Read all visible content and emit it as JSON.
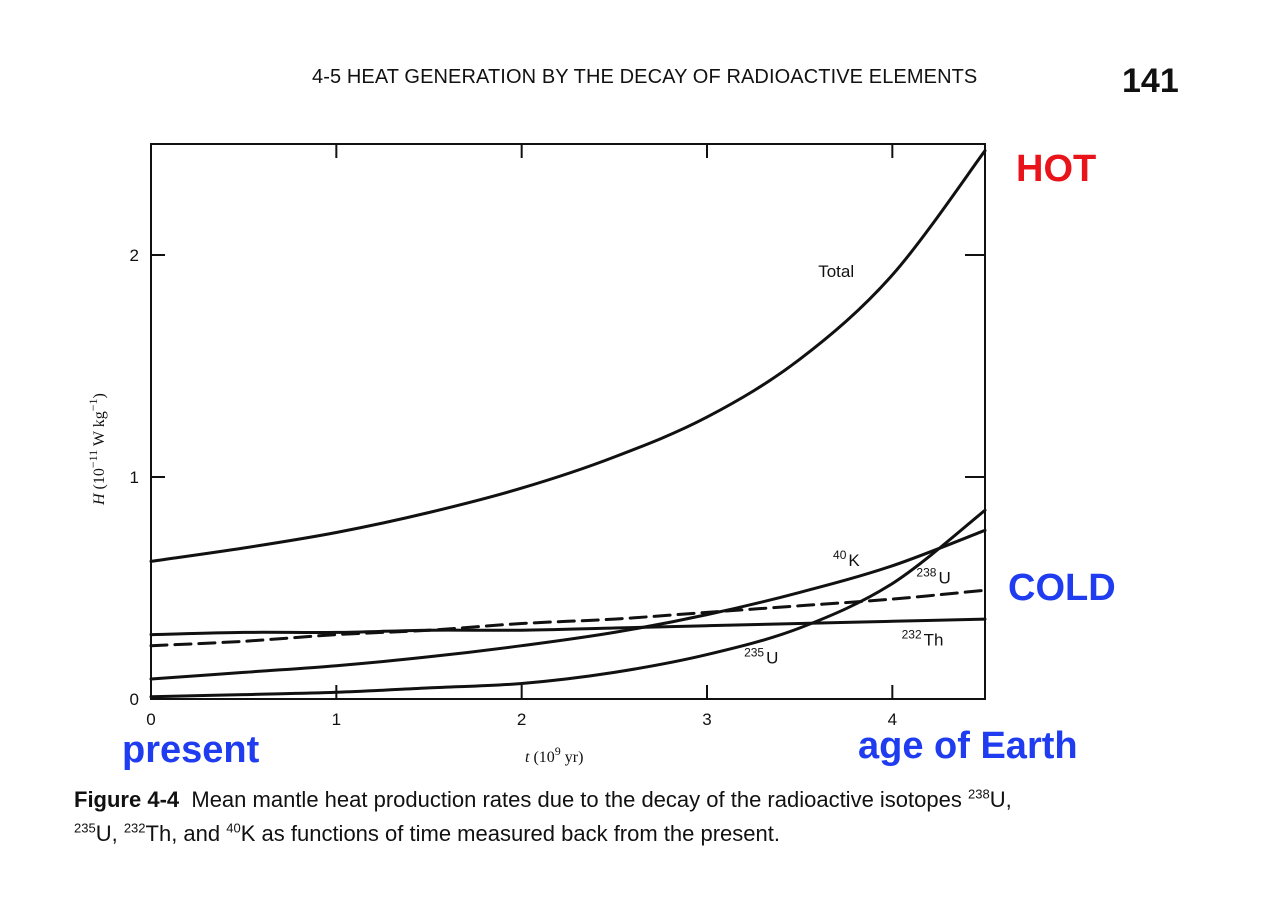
{
  "header": {
    "running_head": "4-5   HEAT GENERATION BY THE DECAY OF RADIOACTIVE ELEMENTS",
    "page_number": "141"
  },
  "annotations": {
    "hot": "HOT",
    "cold": "COLD",
    "present": "present",
    "age_of_earth": "age of Earth",
    "hot_color": "#e8141a",
    "cold_color": "#1f3cf0"
  },
  "caption": {
    "label": "Figure 4-4",
    "text_1": "Mean mantle heat production rates due to the decay of the radioactive isotopes ",
    "iso_1_mass": "238",
    "iso_1_sym": "U, ",
    "iso_2_mass": "235",
    "iso_2_sym": "U, ",
    "iso_3_mass": "232",
    "iso_3_sym": "Th, and ",
    "iso_4_mass": "40",
    "iso_4_sym": "K",
    "text_2": " as functions of time measured back from the present."
  },
  "chart_data": {
    "type": "line",
    "xlim": [
      0,
      4.5
    ],
    "ylim": [
      0,
      2.5
    ],
    "x_ticks": [
      0,
      1,
      2,
      3,
      4
    ],
    "y_ticks": [
      0,
      1,
      2
    ],
    "x_tick_labels": [
      "0",
      "1",
      "2",
      "3",
      "4"
    ],
    "y_tick_labels": [
      "0",
      "1",
      "2"
    ],
    "xlabel": {
      "var": "t",
      "unit_open": " (10",
      "unit_exp": "9",
      "unit_close": " yr)"
    },
    "ylabel": {
      "var": "H",
      "unit_open": " (10",
      "unit_exp": "−11",
      "unit_mid": " W kg",
      "unit_exp2": "−1",
      "unit_close": ")"
    },
    "grid": false,
    "series": [
      {
        "name": "Total",
        "style": "solid",
        "x": [
          0,
          0.5,
          1,
          1.5,
          2,
          2.5,
          3,
          3.5,
          4,
          4.5
        ],
        "y": [
          0.62,
          0.68,
          0.75,
          0.84,
          0.95,
          1.09,
          1.27,
          1.53,
          1.91,
          2.47
        ]
      },
      {
        "name": "40K",
        "mass": "40",
        "sym": "K",
        "style": "solid",
        "x": [
          0,
          0.5,
          1,
          1.5,
          2,
          2.5,
          3,
          3.5,
          4,
          4.5
        ],
        "y": [
          0.09,
          0.12,
          0.15,
          0.19,
          0.24,
          0.3,
          0.38,
          0.48,
          0.6,
          0.76
        ]
      },
      {
        "name": "238U",
        "mass": "238",
        "sym": "U",
        "style": "dashed",
        "x": [
          0,
          0.5,
          1,
          1.5,
          2,
          2.5,
          3,
          3.5,
          4,
          4.5
        ],
        "y": [
          0.24,
          0.26,
          0.29,
          0.31,
          0.34,
          0.36,
          0.39,
          0.42,
          0.45,
          0.49
        ]
      },
      {
        "name": "232Th",
        "mass": "232",
        "sym": "Th",
        "style": "solid",
        "x": [
          0,
          0.5,
          1,
          1.5,
          2,
          2.5,
          3,
          3.5,
          4,
          4.5
        ],
        "y": [
          0.29,
          0.3,
          0.3,
          0.31,
          0.31,
          0.32,
          0.33,
          0.34,
          0.35,
          0.36
        ]
      },
      {
        "name": "235U",
        "mass": "235",
        "sym": "U",
        "style": "solid",
        "x": [
          0,
          0.5,
          1,
          1.5,
          2,
          2.5,
          3,
          3.5,
          4,
          4.5
        ],
        "y": [
          0.01,
          0.02,
          0.03,
          0.05,
          0.07,
          0.12,
          0.2,
          0.32,
          0.52,
          0.85
        ]
      }
    ]
  }
}
